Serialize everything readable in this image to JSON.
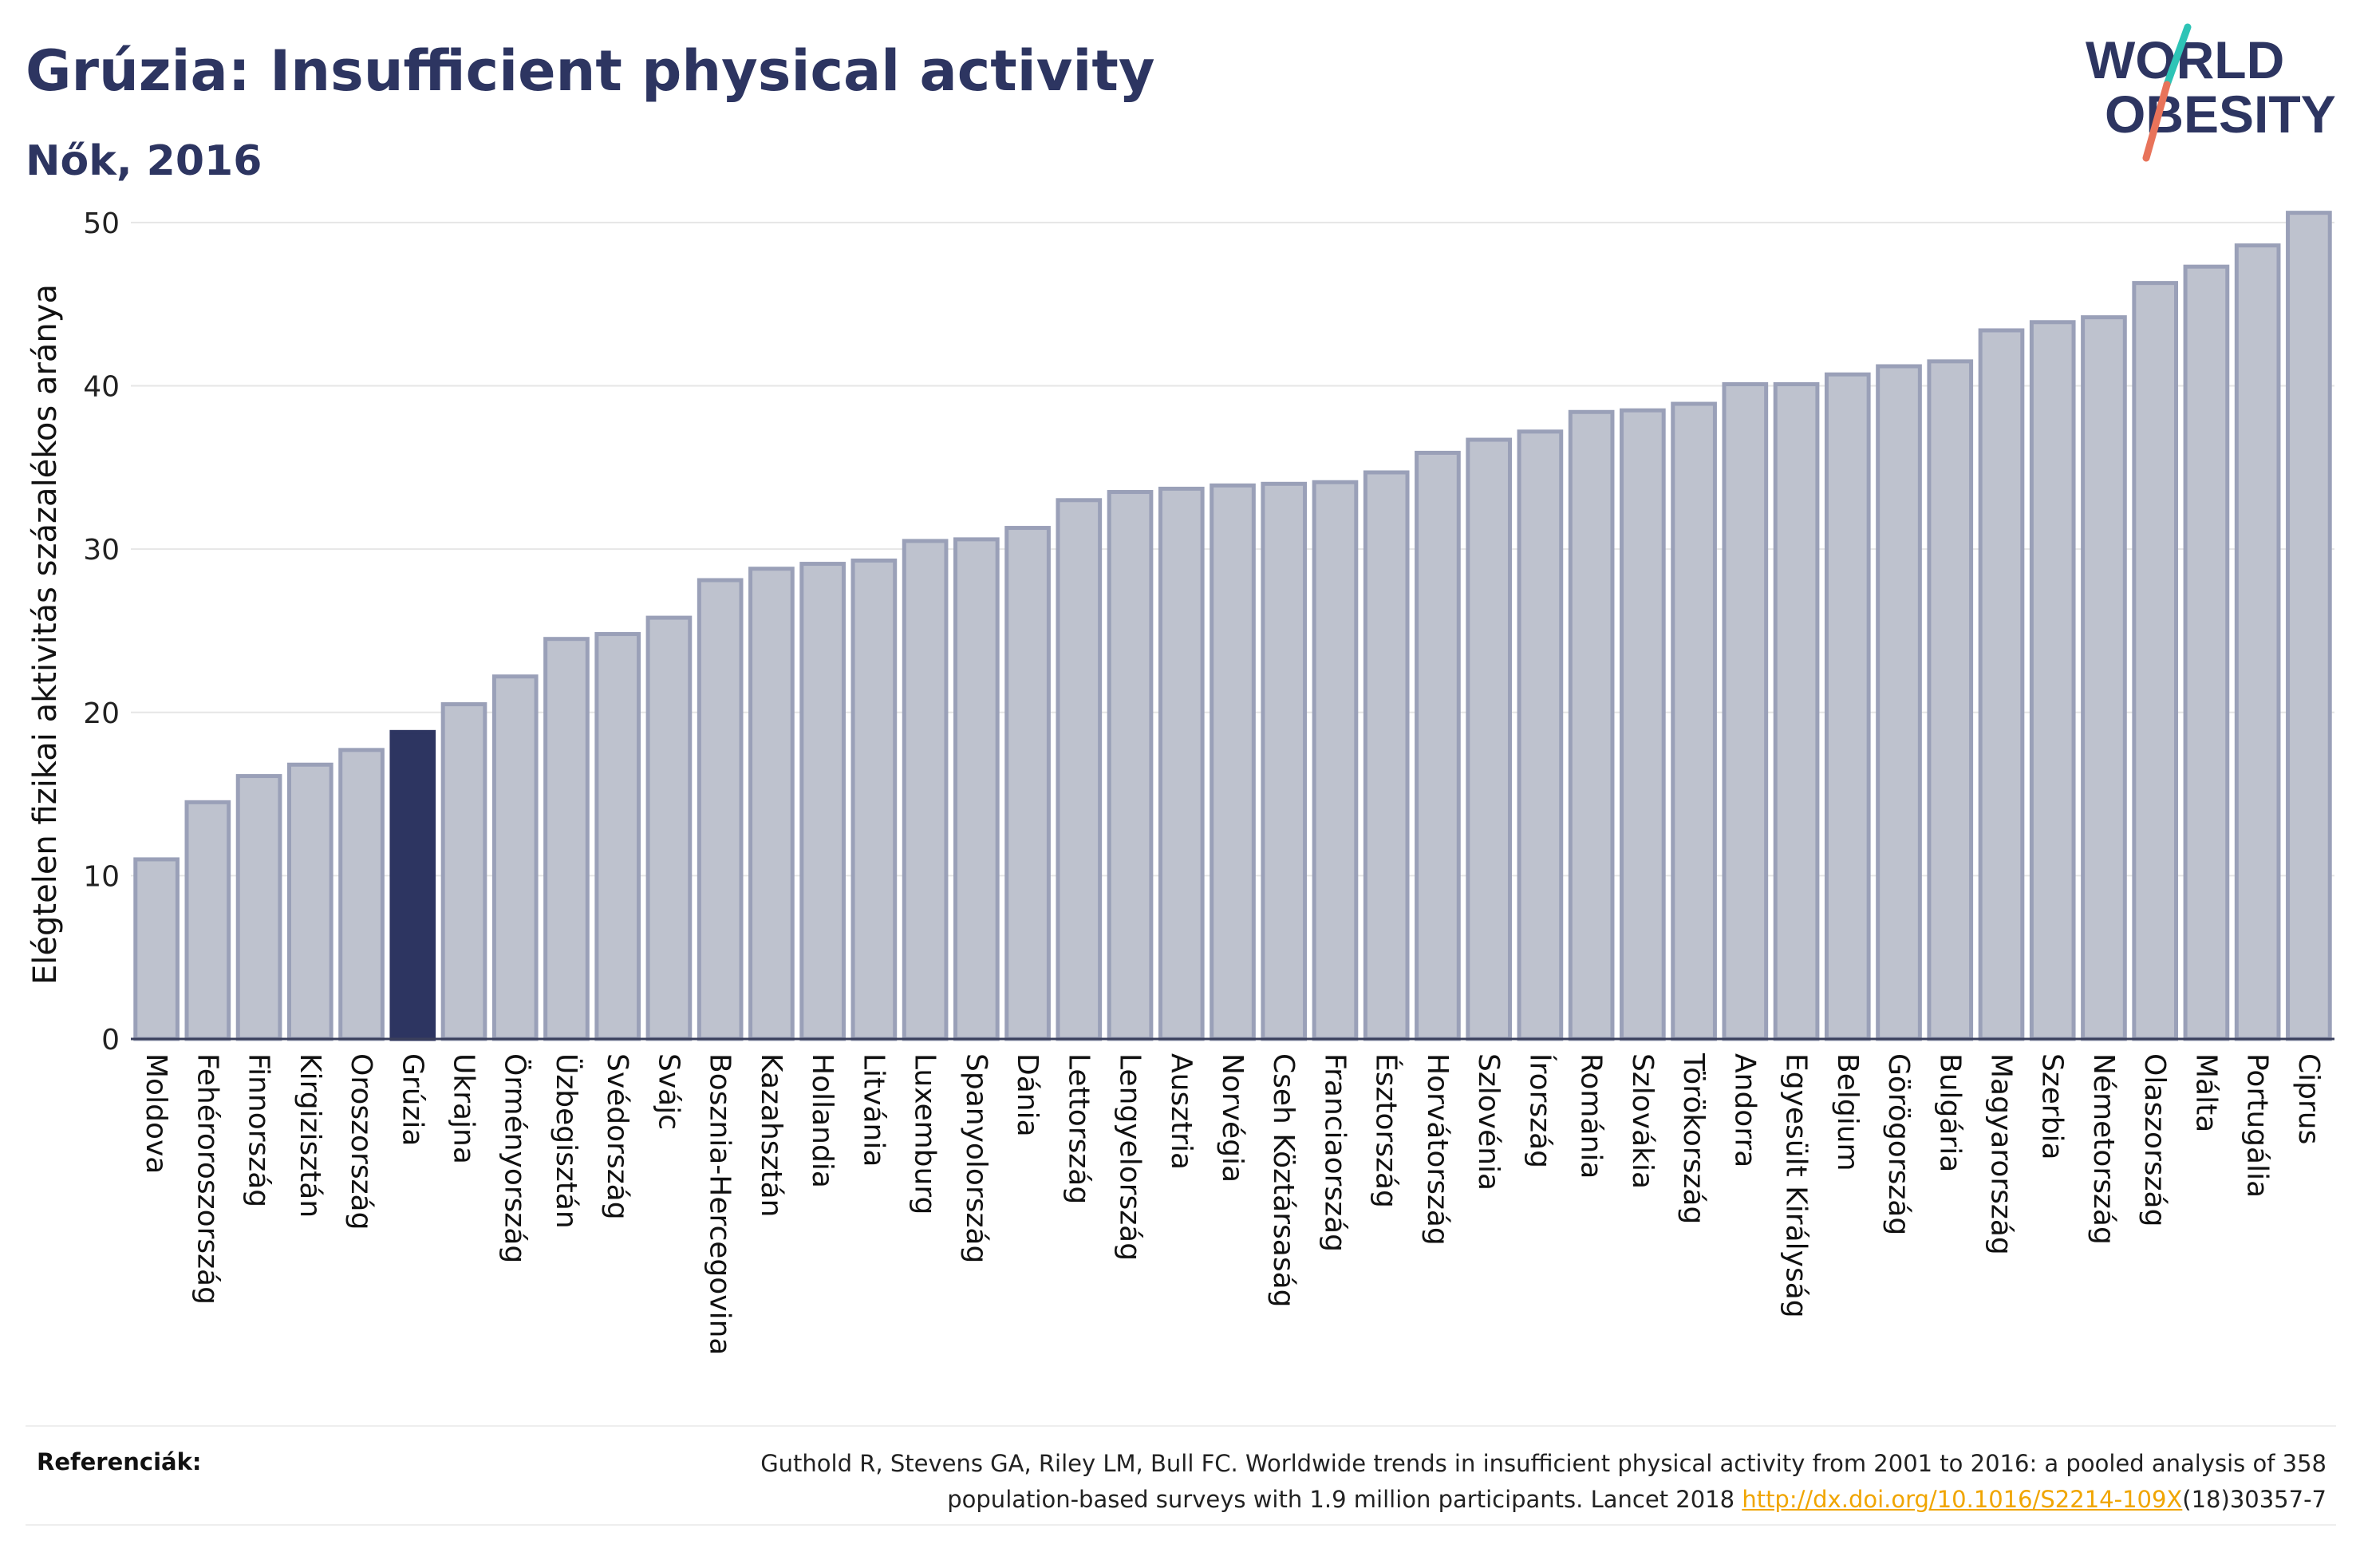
{
  "title": "Grúzia: Insufficient physical activity",
  "subtitle": "Nők, 2016",
  "logo": {
    "line1": "WORLD",
    "line2": "OBESITY"
  },
  "colors": {
    "title": "#2d3561",
    "bar": "#bec2ce",
    "bar_border": "#9aa0b8",
    "highlight": "#2d3561",
    "link": "#f0a500",
    "logo_slash_top": "#2ec4b6",
    "logo_slash_bottom": "#e8735a"
  },
  "chart_data": {
    "type": "bar",
    "ylabel": "Elégtelen fizikai aktivitás százalékos aránya",
    "ylim": [
      0,
      52
    ],
    "yticks": [
      0,
      10,
      20,
      30,
      40,
      50
    ],
    "grid": true,
    "highlight": "Grúzia",
    "categories": [
      "Moldova",
      "Fehéroroszország",
      "Finnország",
      "Kirgizisztán",
      "Oroszország",
      "Grúzia",
      "Ukrajna",
      "Örményország",
      "Üzbegisztán",
      "Svédország",
      "Svájc",
      "Bosznia-Hercegovina",
      "Kazahsztán",
      "Hollandia",
      "Litvánia",
      "Luxemburg",
      "Spanyolország",
      "Dánia",
      "Lettország",
      "Lengyelország",
      "Ausztria",
      "Norvégia",
      "Cseh Köztársaság",
      "Franciaország",
      "Észtország",
      "Horvátország",
      "Szlovénia",
      "Írország",
      "Románia",
      "Szlovákia",
      "Törökország",
      "Andorra",
      "Egyesült Királyság",
      "Belgium",
      "Görögország",
      "Bulgária",
      "Magyarország",
      "Szerbia",
      "Németország",
      "Olaszország",
      "Málta",
      "Portugália",
      "Ciprus"
    ],
    "values": [
      11.0,
      14.5,
      16.1,
      16.8,
      17.7,
      18.8,
      20.5,
      22.2,
      24.5,
      24.8,
      25.8,
      28.1,
      28.8,
      29.1,
      29.3,
      30.5,
      30.6,
      31.3,
      33.0,
      33.5,
      33.7,
      33.9,
      34.0,
      34.1,
      34.7,
      35.9,
      36.7,
      37.2,
      38.4,
      38.5,
      38.9,
      40.1,
      40.1,
      40.7,
      41.2,
      41.5,
      43.4,
      43.9,
      44.2,
      46.3,
      47.3,
      48.6,
      50.6
    ]
  },
  "references": {
    "label": "Referenciák:",
    "text_line1": "Guthold R, Stevens GA, Riley LM, Bull FC. Worldwide trends in insufficient physical activity from 2001 to 2016: a pooled analysis of 358",
    "text_line2_prefix": "population-based surveys with 1.9 million participants. Lancet 2018 ",
    "link": "http://dx.doi.org/10.1016/S2214-109X",
    "text_line2_suffix": "(18)30357-7"
  }
}
